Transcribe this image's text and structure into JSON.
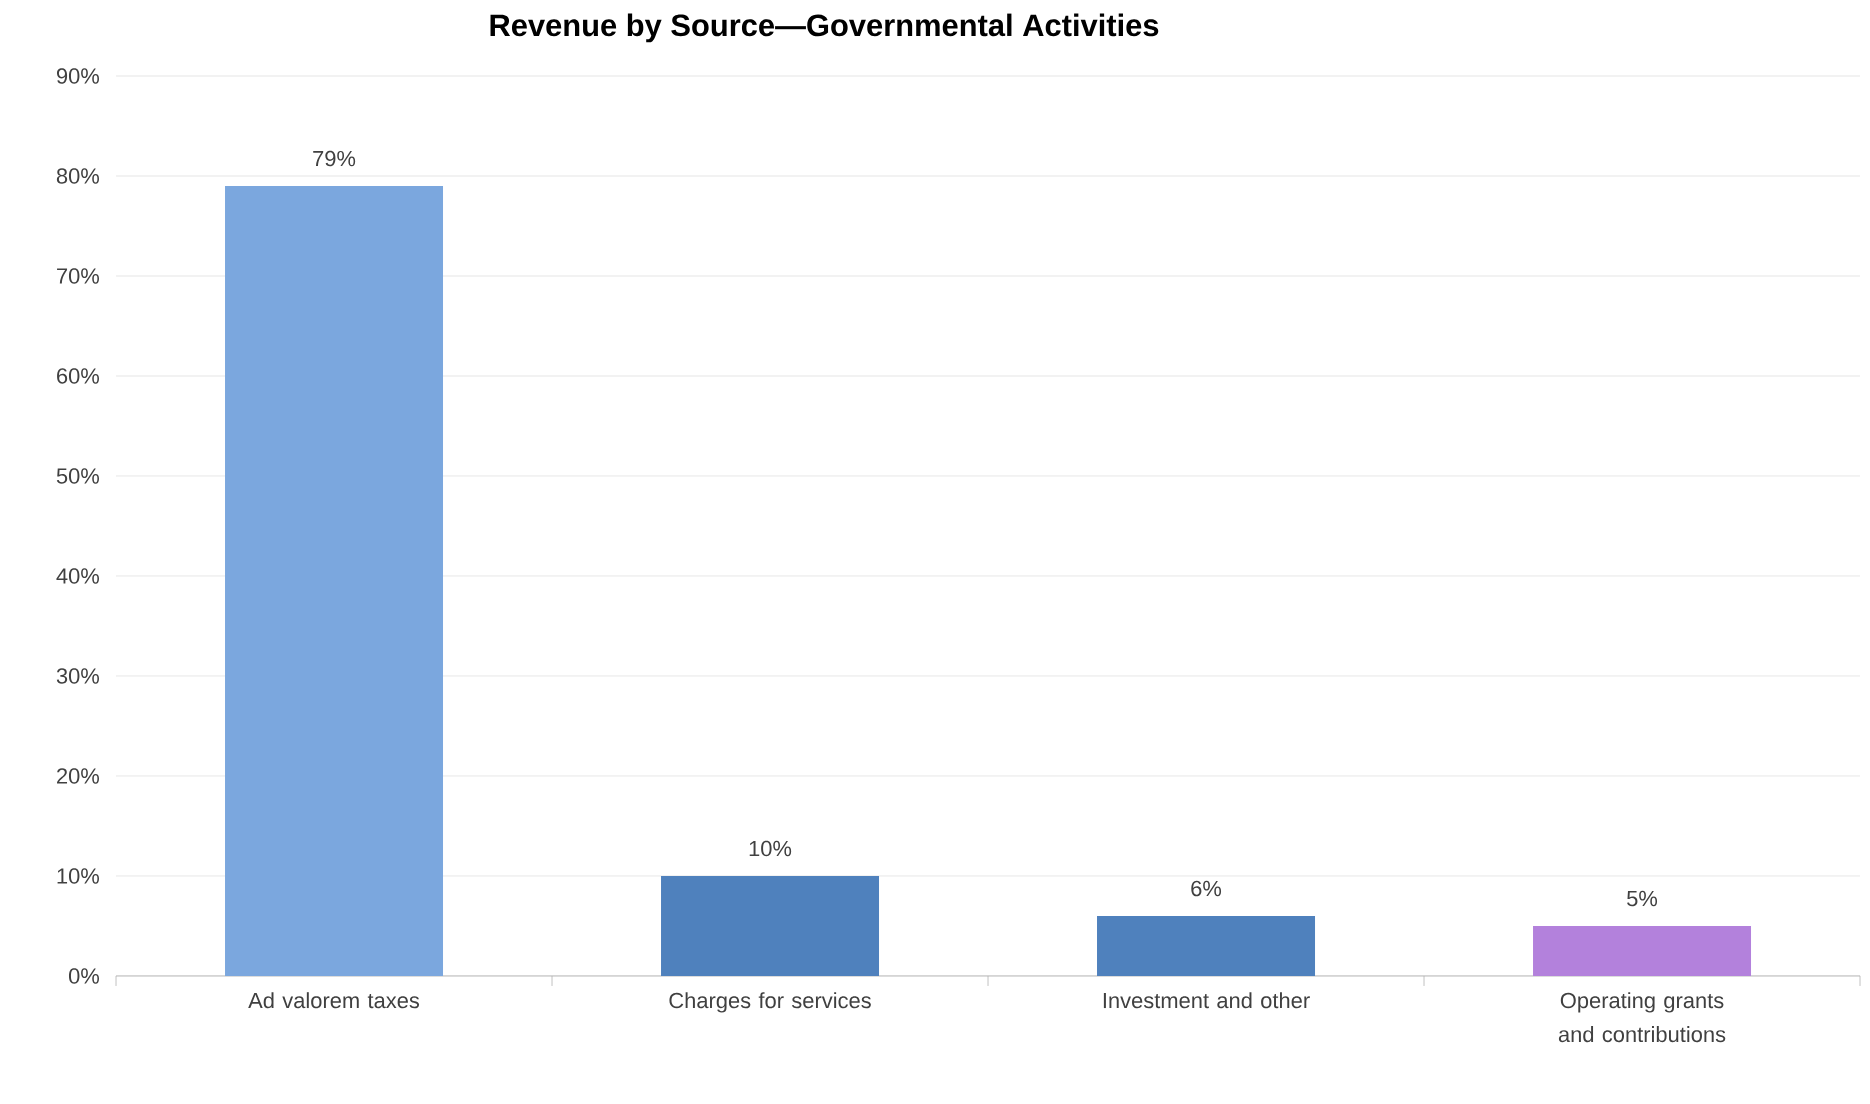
{
  "chart_data": {
    "type": "bar",
    "title": "Revenue by Source—Governmental Activities",
    "categories": [
      "Ad valorem taxes",
      "Charges for services",
      "Investment and other",
      "Operating grants and contributions"
    ],
    "values": [
      79,
      10,
      6,
      5
    ],
    "colors": [
      "#7ba7de",
      "#4f81bd",
      "#4f81bd",
      "#b381dc"
    ],
    "value_labels": [
      "79%",
      "10%",
      "6%",
      "5%"
    ],
    "ylim": [
      0,
      90
    ],
    "yticks": [
      {
        "value": 0,
        "label": "0%"
      },
      {
        "value": 10,
        "label": "10%"
      },
      {
        "value": 20,
        "label": "20%"
      },
      {
        "value": 30,
        "label": "30%"
      },
      {
        "value": 40,
        "label": "40%"
      },
      {
        "value": 50,
        "label": "50%"
      },
      {
        "value": 60,
        "label": "60%"
      },
      {
        "value": 70,
        "label": "70%"
      },
      {
        "value": 80,
        "label": "80%"
      },
      {
        "value": 90,
        "label": "90%"
      }
    ],
    "grid": "y"
  }
}
